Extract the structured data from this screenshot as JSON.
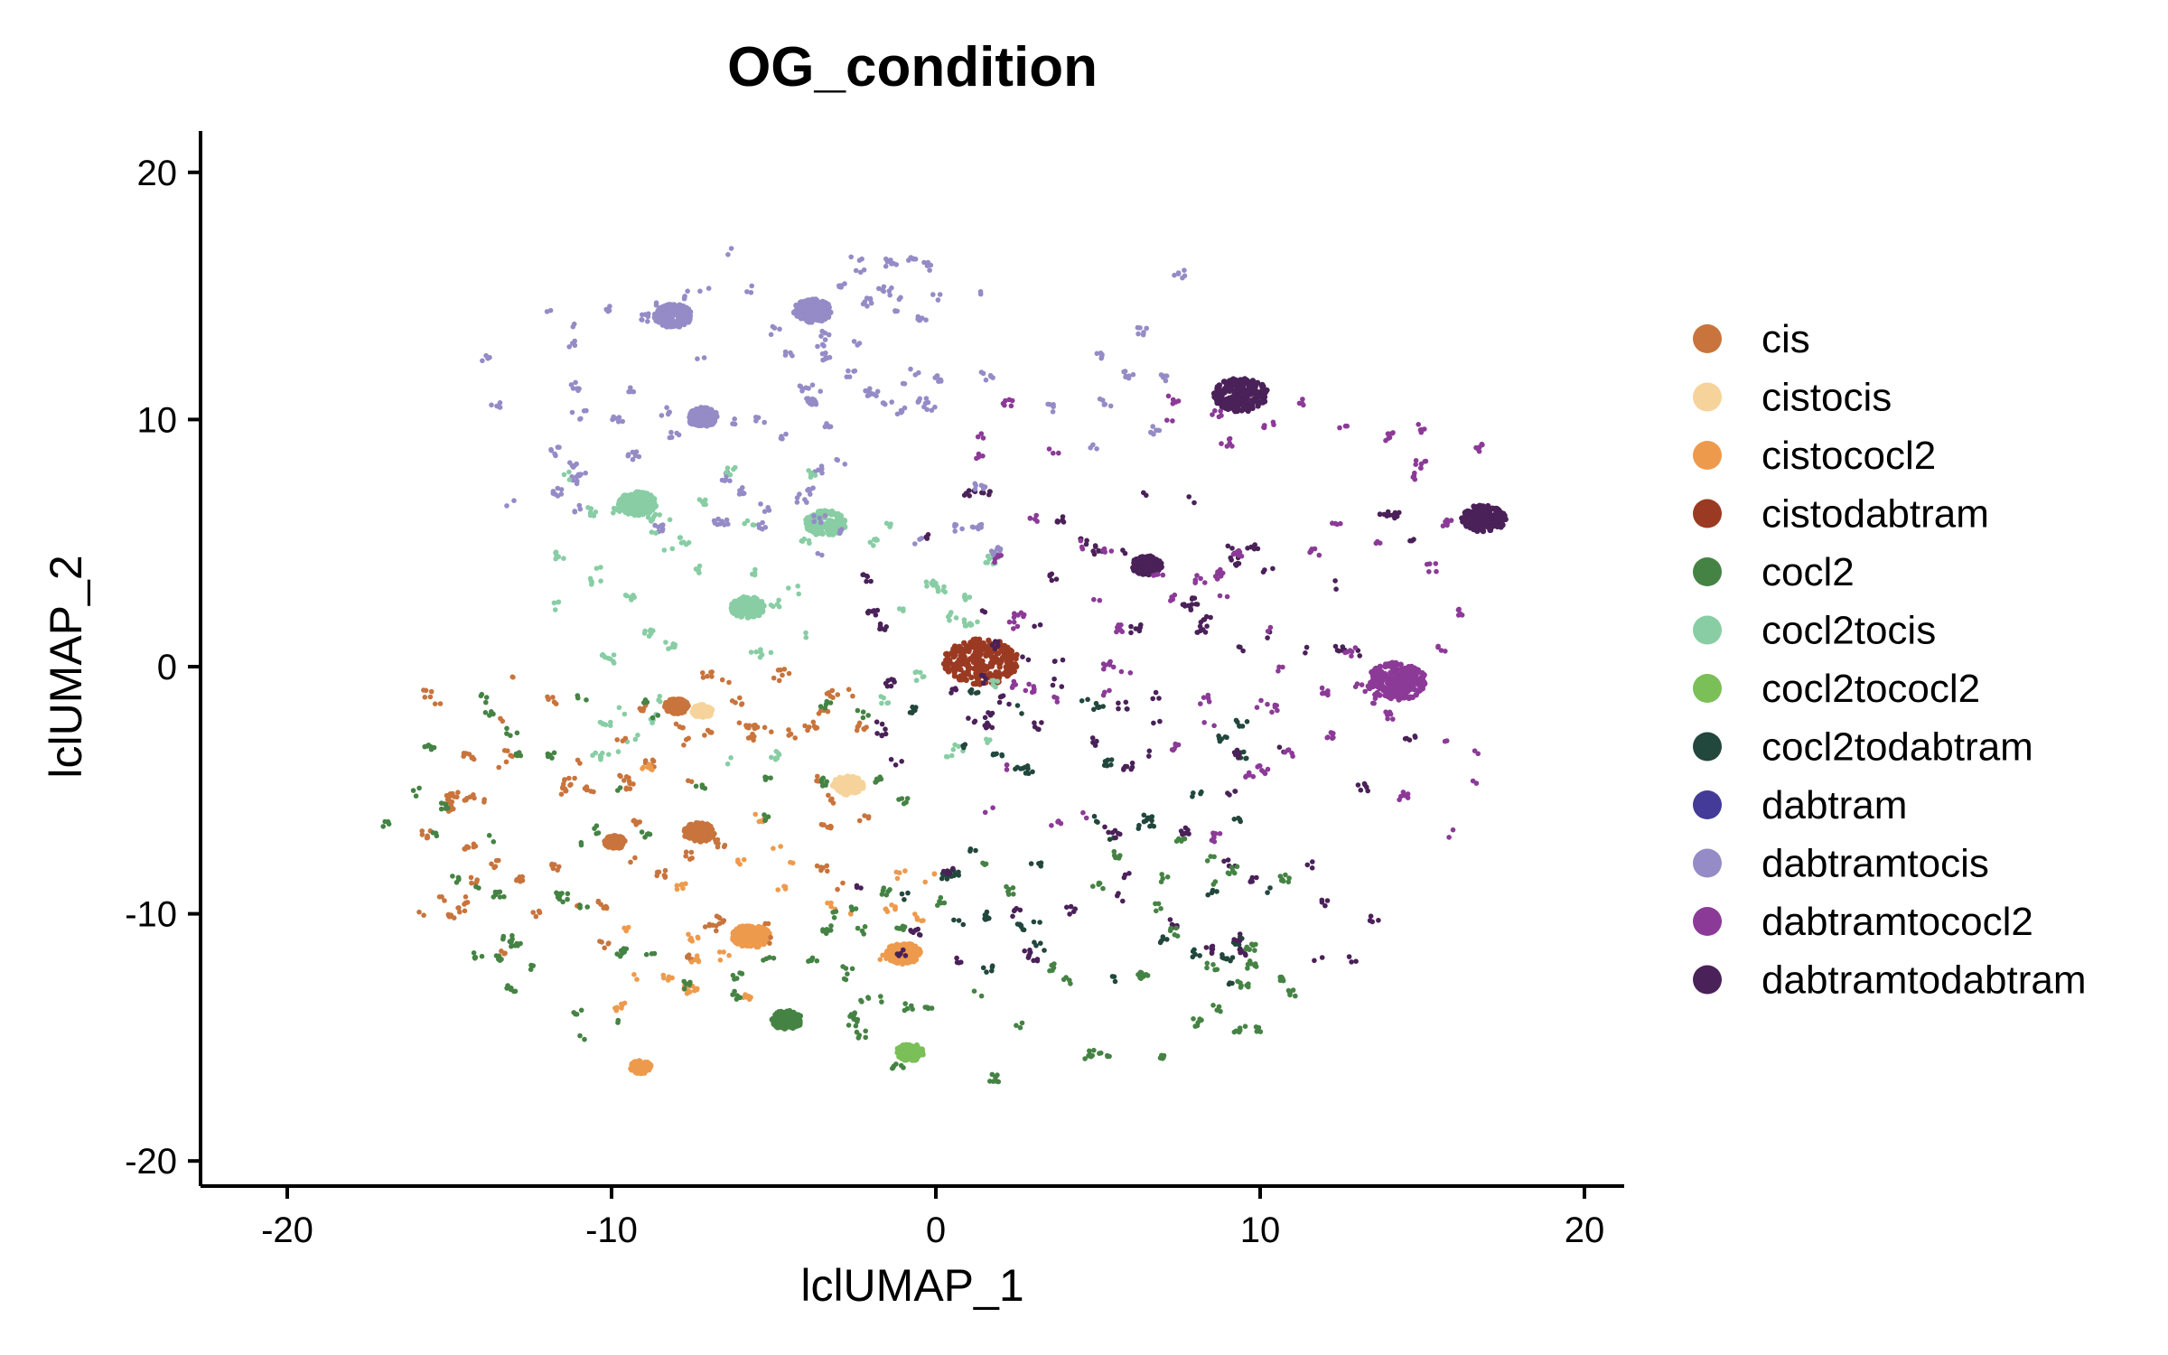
{
  "chart_data": {
    "type": "scatter",
    "title": "OG_condition",
    "xlabel": "lclUMAP_1",
    "ylabel": "lclUMAP_2",
    "xlim": [
      -22.5,
      21.5
    ],
    "ylim": [
      -21,
      21.5
    ],
    "x_ticks": [
      -20,
      -10,
      0,
      10,
      20
    ],
    "x_tick_labels": [
      "-20",
      "-10",
      "0",
      "10",
      "20"
    ],
    "y_ticks": [
      20,
      10,
      0,
      -10,
      -20
    ],
    "y_tick_labels": [
      "20",
      "10",
      "0",
      "-10",
      "-20"
    ],
    "grid": false,
    "legend_position": "right",
    "series": [
      {
        "name": "cis",
        "color": "#C8743C"
      },
      {
        "name": "cistocis",
        "color": "#F6D39A"
      },
      {
        "name": "cistococl2",
        "color": "#EE9A4D"
      },
      {
        "name": "cistodabtram",
        "color": "#9B3A22"
      },
      {
        "name": "cocl2",
        "color": "#458344"
      },
      {
        "name": "cocl2tocis",
        "color": "#88CDA4"
      },
      {
        "name": "cocl2tococl2",
        "color": "#7BBF58"
      },
      {
        "name": "cocl2todabtram",
        "color": "#22473D"
      },
      {
        "name": "dabtram",
        "color": "#433B97"
      },
      {
        "name": "dabtramtocis",
        "color": "#958BC6"
      },
      {
        "name": "dabtramtococl2",
        "color": "#8C3A97"
      },
      {
        "name": "dabtramtodabtram",
        "color": "#4A2158"
      }
    ],
    "clusters": [
      {
        "series": "dabtramtodabtram",
        "x": 9.4,
        "y": 11.0,
        "r": 0.8
      },
      {
        "series": "dabtramtodabtram",
        "x": 16.9,
        "y": 6.0,
        "r": 0.65
      },
      {
        "series": "dabtramtodabtram",
        "x": 6.5,
        "y": 4.1,
        "r": 0.45
      },
      {
        "series": "dabtramtococl2",
        "x": 14.2,
        "y": -0.6,
        "r": 0.9
      },
      {
        "series": "cistodabtram",
        "x": 1.4,
        "y": 0.2,
        "r": 1.1
      },
      {
        "series": "cocl2tocis",
        "x": -9.2,
        "y": 6.6,
        "r": 0.55
      },
      {
        "series": "cocl2tocis",
        "x": -3.4,
        "y": 5.8,
        "r": 0.6
      },
      {
        "series": "cocl2tocis",
        "x": -5.8,
        "y": 2.4,
        "r": 0.5
      },
      {
        "series": "dabtramtocis",
        "x": -8.1,
        "y": 14.2,
        "r": 0.55
      },
      {
        "series": "dabtramtocis",
        "x": -3.8,
        "y": 14.4,
        "r": 0.55
      },
      {
        "series": "dabtramtocis",
        "x": -7.2,
        "y": 10.1,
        "r": 0.45
      },
      {
        "series": "cistocis",
        "x": -2.7,
        "y": -4.8,
        "r": 0.45
      },
      {
        "series": "cistocis",
        "x": -7.2,
        "y": -1.8,
        "r": 0.3
      },
      {
        "series": "cistococl2",
        "x": -5.7,
        "y": -10.9,
        "r": 0.55
      },
      {
        "series": "cistococl2",
        "x": -1.0,
        "y": -11.6,
        "r": 0.5
      },
      {
        "series": "cistococl2",
        "x": -9.1,
        "y": -16.2,
        "r": 0.3
      },
      {
        "series": "cis",
        "x": -7.3,
        "y": -6.7,
        "r": 0.45
      },
      {
        "series": "cis",
        "x": -8.0,
        "y": -1.6,
        "r": 0.35
      },
      {
        "series": "cis",
        "x": -9.9,
        "y": -7.1,
        "r": 0.3
      },
      {
        "series": "cocl2",
        "x": -4.6,
        "y": -14.3,
        "r": 0.45
      },
      {
        "series": "cocl2tococl2",
        "x": -0.8,
        "y": -15.6,
        "r": 0.4
      }
    ]
  }
}
